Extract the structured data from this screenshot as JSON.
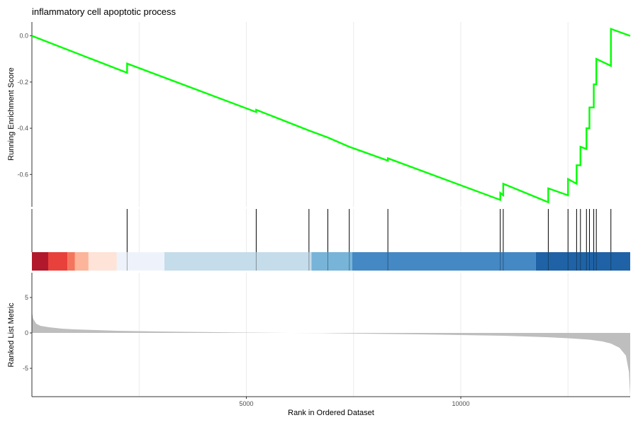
{
  "chart_data": {
    "type": "line",
    "title": "inflammatory cell apoptotic process",
    "panels": {
      "running_score": {
        "ylabel": "Running Enrichment Score",
        "ylim": [
          -0.74,
          0.06
        ],
        "yticks": [
          0.0,
          -0.2,
          -0.4,
          -0.6
        ],
        "ytick_labels": [
          "0.0",
          "-0.2",
          "-0.4",
          "-0.6"
        ],
        "line_color": "#00ff00",
        "series": [
          {
            "x": [
              0,
              2220,
              2220,
              5230,
              5230,
              6460,
              6460,
              6900,
              6900,
              7400,
              7400,
              8300,
              8300,
              10920,
              10920,
              10990,
              10990,
              12040,
              12040,
              12500,
              12500,
              12700,
              12700,
              12790,
              12790,
              12930,
              12930,
              13000,
              13000,
              13100,
              13100,
              13160,
              13160,
              13500,
              13500,
              13950
            ],
            "y": [
              0.0,
              -0.16,
              -0.12,
              -0.33,
              -0.32,
              -0.41,
              -0.41,
              -0.44,
              -0.44,
              -0.48,
              -0.48,
              -0.54,
              -0.53,
              -0.71,
              -0.68,
              -0.69,
              -0.64,
              -0.72,
              -0.66,
              -0.69,
              -0.62,
              -0.64,
              -0.56,
              -0.56,
              -0.48,
              -0.49,
              -0.4,
              -0.4,
              -0.31,
              -0.31,
              -0.21,
              -0.21,
              -0.1,
              -0.13,
              0.03,
              0.0
            ]
          }
        ]
      },
      "hits": {
        "positions": [
          2220,
          5230,
          6460,
          6900,
          7400,
          8300,
          10920,
          10990,
          12040,
          12500,
          12700,
          12790,
          12930,
          13000,
          13100,
          13160,
          13500
        ]
      },
      "color_bar": {
        "segments": [
          {
            "start": 0,
            "end": 380,
            "color": "#b2182b"
          },
          {
            "start": 380,
            "end": 830,
            "color": "#e8413c"
          },
          {
            "start": 830,
            "end": 1000,
            "color": "#f4755e"
          },
          {
            "start": 1000,
            "end": 1320,
            "color": "#fcb49a"
          },
          {
            "start": 1320,
            "end": 1980,
            "color": "#fee3d8"
          },
          {
            "start": 1980,
            "end": 3090,
            "color": "#eef3fb"
          },
          {
            "start": 3090,
            "end": 6520,
            "color": "#c5dcea"
          },
          {
            "start": 6520,
            "end": 7470,
            "color": "#77b4d8"
          },
          {
            "start": 7470,
            "end": 11750,
            "color": "#4489c4"
          },
          {
            "start": 11750,
            "end": 13950,
            "color": "#1f63a6"
          }
        ]
      },
      "ranked_metric": {
        "ylabel": "Ranked List Metric",
        "ylim": [
          -9.0,
          8.5
        ],
        "yticks": [
          5,
          0,
          -5
        ],
        "ytick_labels": [
          "5",
          "0",
          "-5"
        ],
        "fill_color": "#bebebe",
        "x": [
          0,
          30,
          100,
          200,
          400,
          700,
          1000,
          1500,
          2000,
          3000,
          4000,
          5000,
          6000,
          6800,
          7000,
          8000,
          9000,
          10000,
          11000,
          11500,
          12000,
          12500,
          13000,
          13300,
          13500,
          13700,
          13850,
          13920,
          13950
        ],
        "y": [
          3.0,
          2.0,
          1.3,
          1.0,
          0.8,
          0.6,
          0.5,
          0.4,
          0.3,
          0.2,
          0.12,
          0.05,
          0.0,
          -0.03,
          -0.05,
          -0.12,
          -0.2,
          -0.3,
          -0.4,
          -0.5,
          -0.6,
          -0.75,
          -0.95,
          -1.2,
          -1.5,
          -2.1,
          -3.2,
          -5.5,
          -9.0
        ]
      }
    },
    "xlabel": "Rank in Ordered Dataset",
    "xlim": [
      0,
      13950
    ],
    "xticks": [
      5000,
      10000
    ],
    "xtick_labels": [
      "5000",
      "10000"
    ],
    "grid": true
  }
}
